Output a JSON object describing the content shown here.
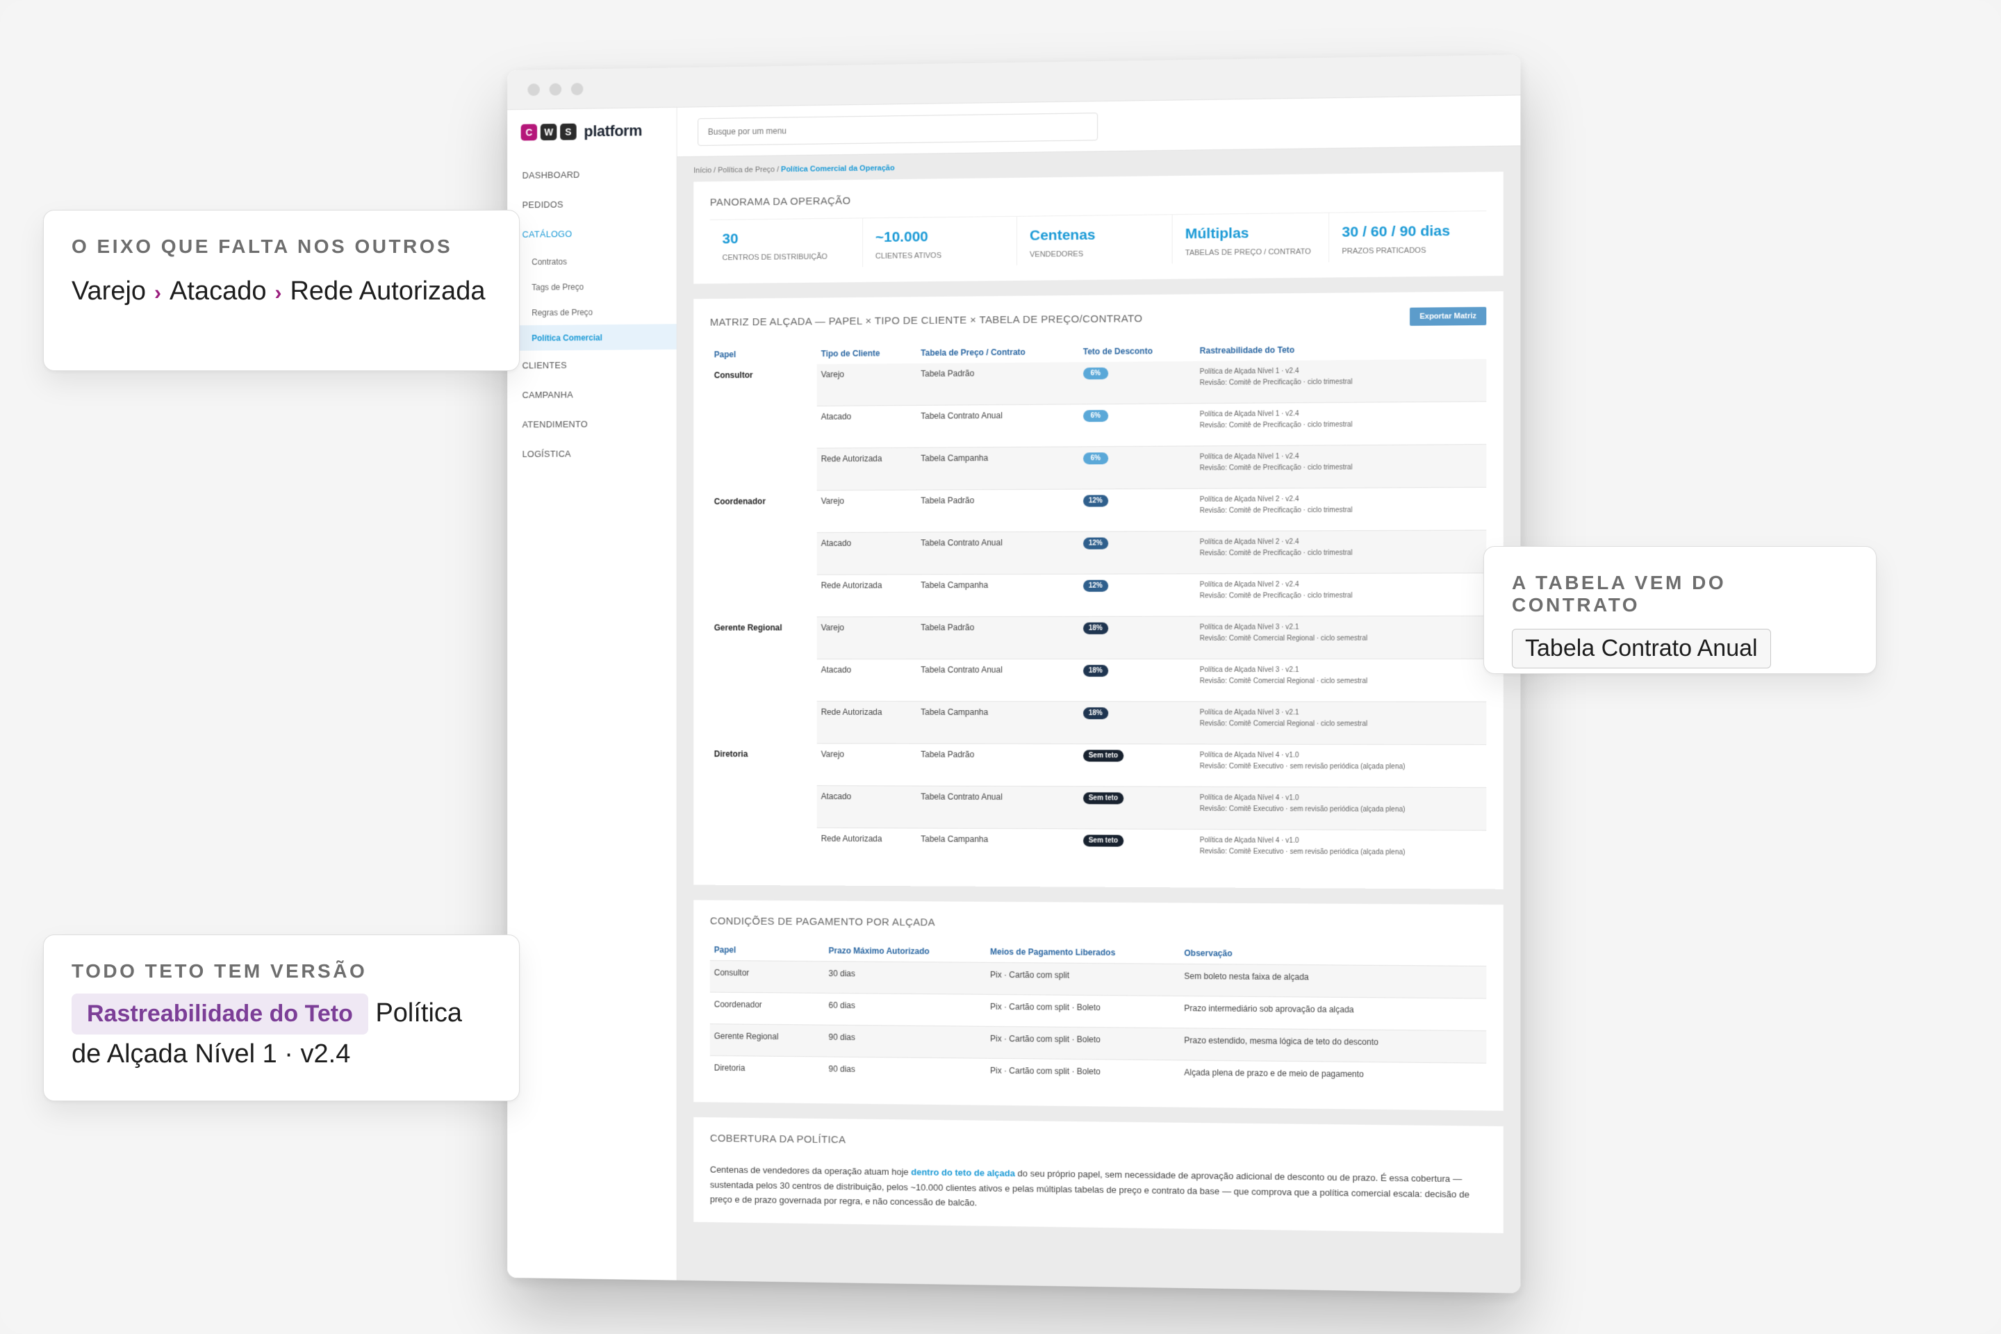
{
  "colors": {
    "accent": "#1b9ad6",
    "logo_c": "#b5177a",
    "logo_w": "#2b2b2b",
    "logo_s": "#2b2b2b",
    "badge_light": "#5aa8d8",
    "badge_mid": "#2f5f8c",
    "badge_dark": "#1f3550",
    "badge_black": "#18222f",
    "callout_chevron": "#9a1f7e",
    "callout_tag": "#7c3e97"
  },
  "app": {
    "logo_letters": [
      "C",
      "W",
      "S"
    ],
    "logo_word": "platform",
    "search_placeholder": "Busque por um menu"
  },
  "sidebar": {
    "dashboard": "DASHBOARD",
    "pedidos": "PEDIDOS",
    "catalogo": "CATÁLOGO",
    "sub": [
      "Contratos",
      "Tags de Preço",
      "Regras de Preço",
      "Política Comercial"
    ],
    "clientes": "CLIENTES",
    "campanha": "CAMPANHA",
    "atendimento": "ATENDIMENTO",
    "logistica": "LOGÍSTICA"
  },
  "breadcrumb": {
    "prefix": "Início / Política de Preço / ",
    "current": "Política Comercial da Operação"
  },
  "overview": {
    "title": "PANORAMA DA OPERAÇÃO",
    "stats": [
      {
        "value": "30",
        "label": "CENTROS DE DISTRIBUIÇÃO"
      },
      {
        "value": "~10.000",
        "label": "CLIENTES ATIVOS"
      },
      {
        "value": "Centenas",
        "label": "VENDEDORES"
      },
      {
        "value": "Múltiplas",
        "label": "TABELAS DE PREÇO / CONTRATO"
      },
      {
        "value": "30 / 60 / 90 dias",
        "label": "PRAZOS PRATICADOS"
      }
    ]
  },
  "matrix": {
    "title": "MATRIZ DE ALÇADA — PAPEL × TIPO DE CLIENTE × TABELA DE PREÇO/CONTRATO",
    "export_label": "Exportar Matriz",
    "headers": [
      "Papel",
      "Tipo de Cliente",
      "Tabela de Preço / Contrato",
      "Teto de Desconto",
      "Rastreabilidade do Teto"
    ],
    "rows": [
      {
        "role": "Consultor",
        "client": "Varejo",
        "table": "Tabela Padrão",
        "cap": "6%",
        "trace1": "Política de Alçada Nível 1 · v2.4",
        "trace2": "Revisão: Comitê de Precificação · ciclo trimestral"
      },
      {
        "role": "",
        "client": "Atacado",
        "table": "Tabela Contrato Anual",
        "cap": "6%",
        "trace1": "Política de Alçada Nível 1 · v2.4",
        "trace2": "Revisão: Comitê de Precificação · ciclo trimestral"
      },
      {
        "role": "",
        "client": "Rede Autorizada",
        "table": "Tabela Campanha",
        "cap": "6%",
        "trace1": "Política de Alçada Nível 1 · v2.4",
        "trace2": "Revisão: Comitê de Precificação · ciclo trimestral"
      },
      {
        "role": "Coordenador",
        "client": "Varejo",
        "table": "Tabela Padrão",
        "cap": "12%",
        "trace1": "Política de Alçada Nível 2 · v2.4",
        "trace2": "Revisão: Comitê de Precificação · ciclo trimestral"
      },
      {
        "role": "",
        "client": "Atacado",
        "table": "Tabela Contrato Anual",
        "cap": "12%",
        "trace1": "Política de Alçada Nível 2 · v2.4",
        "trace2": "Revisão: Comitê de Precificação · ciclo trimestral"
      },
      {
        "role": "",
        "client": "Rede Autorizada",
        "table": "Tabela Campanha",
        "cap": "12%",
        "trace1": "Política de Alçada Nível 2 · v2.4",
        "trace2": "Revisão: Comitê de Precificação · ciclo trimestral"
      },
      {
        "role": "Gerente Regional",
        "client": "Varejo",
        "table": "Tabela Padrão",
        "cap": "18%",
        "trace1": "Política de Alçada Nível 3 · v2.1",
        "trace2": "Revisão: Comitê Comercial Regional · ciclo semestral"
      },
      {
        "role": "",
        "client": "Atacado",
        "table": "Tabela Contrato Anual",
        "cap": "18%",
        "trace1": "Política de Alçada Nível 3 · v2.1",
        "trace2": "Revisão: Comitê Comercial Regional · ciclo semestral"
      },
      {
        "role": "",
        "client": "Rede Autorizada",
        "table": "Tabela Campanha",
        "cap": "18%",
        "trace1": "Política de Alçada Nível 3 · v2.1",
        "trace2": "Revisão: Comitê Comercial Regional · ciclo semestral"
      },
      {
        "role": "Diretoria",
        "client": "Varejo",
        "table": "Tabela Padrão",
        "cap": "Sem teto",
        "trace1": "Política de Alçada Nível 4 · v1.0",
        "trace2": "Revisão: Comitê Executivo · sem revisão periódica (alçada plena)"
      },
      {
        "role": "",
        "client": "Atacado",
        "table": "Tabela Contrato Anual",
        "cap": "Sem teto",
        "trace1": "Política de Alçada Nível 4 · v1.0",
        "trace2": "Revisão: Comitê Executivo · sem revisão periódica (alçada plena)"
      },
      {
        "role": "",
        "client": "Rede Autorizada",
        "table": "Tabela Campanha",
        "cap": "Sem teto",
        "trace1": "Política de Alçada Nível 4 · v1.0",
        "trace2": "Revisão: Comitê Executivo · sem revisão periódica (alçada plena)"
      }
    ]
  },
  "payment": {
    "title": "CONDIÇÕES DE PAGAMENTO POR ALÇADA",
    "headers": [
      "Papel",
      "Prazo Máximo Autorizado",
      "Meios de Pagamento Liberados",
      "Observação"
    ],
    "rows": [
      {
        "role": "Consultor",
        "term": "30 dias",
        "methods": "Pix · Cartão com split",
        "note": "Sem boleto nesta faixa de alçada"
      },
      {
        "role": "Coordenador",
        "term": "60 dias",
        "methods": "Pix · Cartão com split · Boleto",
        "note": "Prazo intermediário sob aprovação da alçada"
      },
      {
        "role": "Gerente Regional",
        "term": "90 dias",
        "methods": "Pix · Cartão com split · Boleto",
        "note": "Prazo estendido, mesma lógica de teto do desconto"
      },
      {
        "role": "Diretoria",
        "term": "90 dias",
        "methods": "Pix · Cartão com split · Boleto",
        "note": "Alçada plena de prazo e de meio de pagamento"
      }
    ]
  },
  "coverage": {
    "title": "COBERTURA DA POLÍTICA",
    "text_before": "Centenas de vendedores da operação atuam hoje ",
    "text_highlight": "dentro do teto de alçada",
    "text_after": " do seu próprio papel, sem necessidade de aprovação adicional de desconto ou de prazo. É essa cobertura — sustentada pelos 30 centros de distribuição, pelos ~10.000 clientes ativos e pelas múltiplas tabelas de preço e contrato da base — que comprova que a política comercial escala: decisão de preço e de prazo governada por regra, e não concessão de balcão."
  },
  "callouts": {
    "axis": {
      "title": "O EIXO QUE FALTA NOS OUTROS",
      "items": [
        "Varejo",
        "Atacado",
        "Rede Autorizada"
      ]
    },
    "contract": {
      "title": "A TABELA VEM DO CONTRATO",
      "chip": "Tabela Contrato Anual"
    },
    "version": {
      "title": "TODO TETO TEM VERSÃO",
      "tag": "Rastreabilidade do Teto",
      "text": "Política de Alçada Nível 1 · v2.4"
    }
  }
}
